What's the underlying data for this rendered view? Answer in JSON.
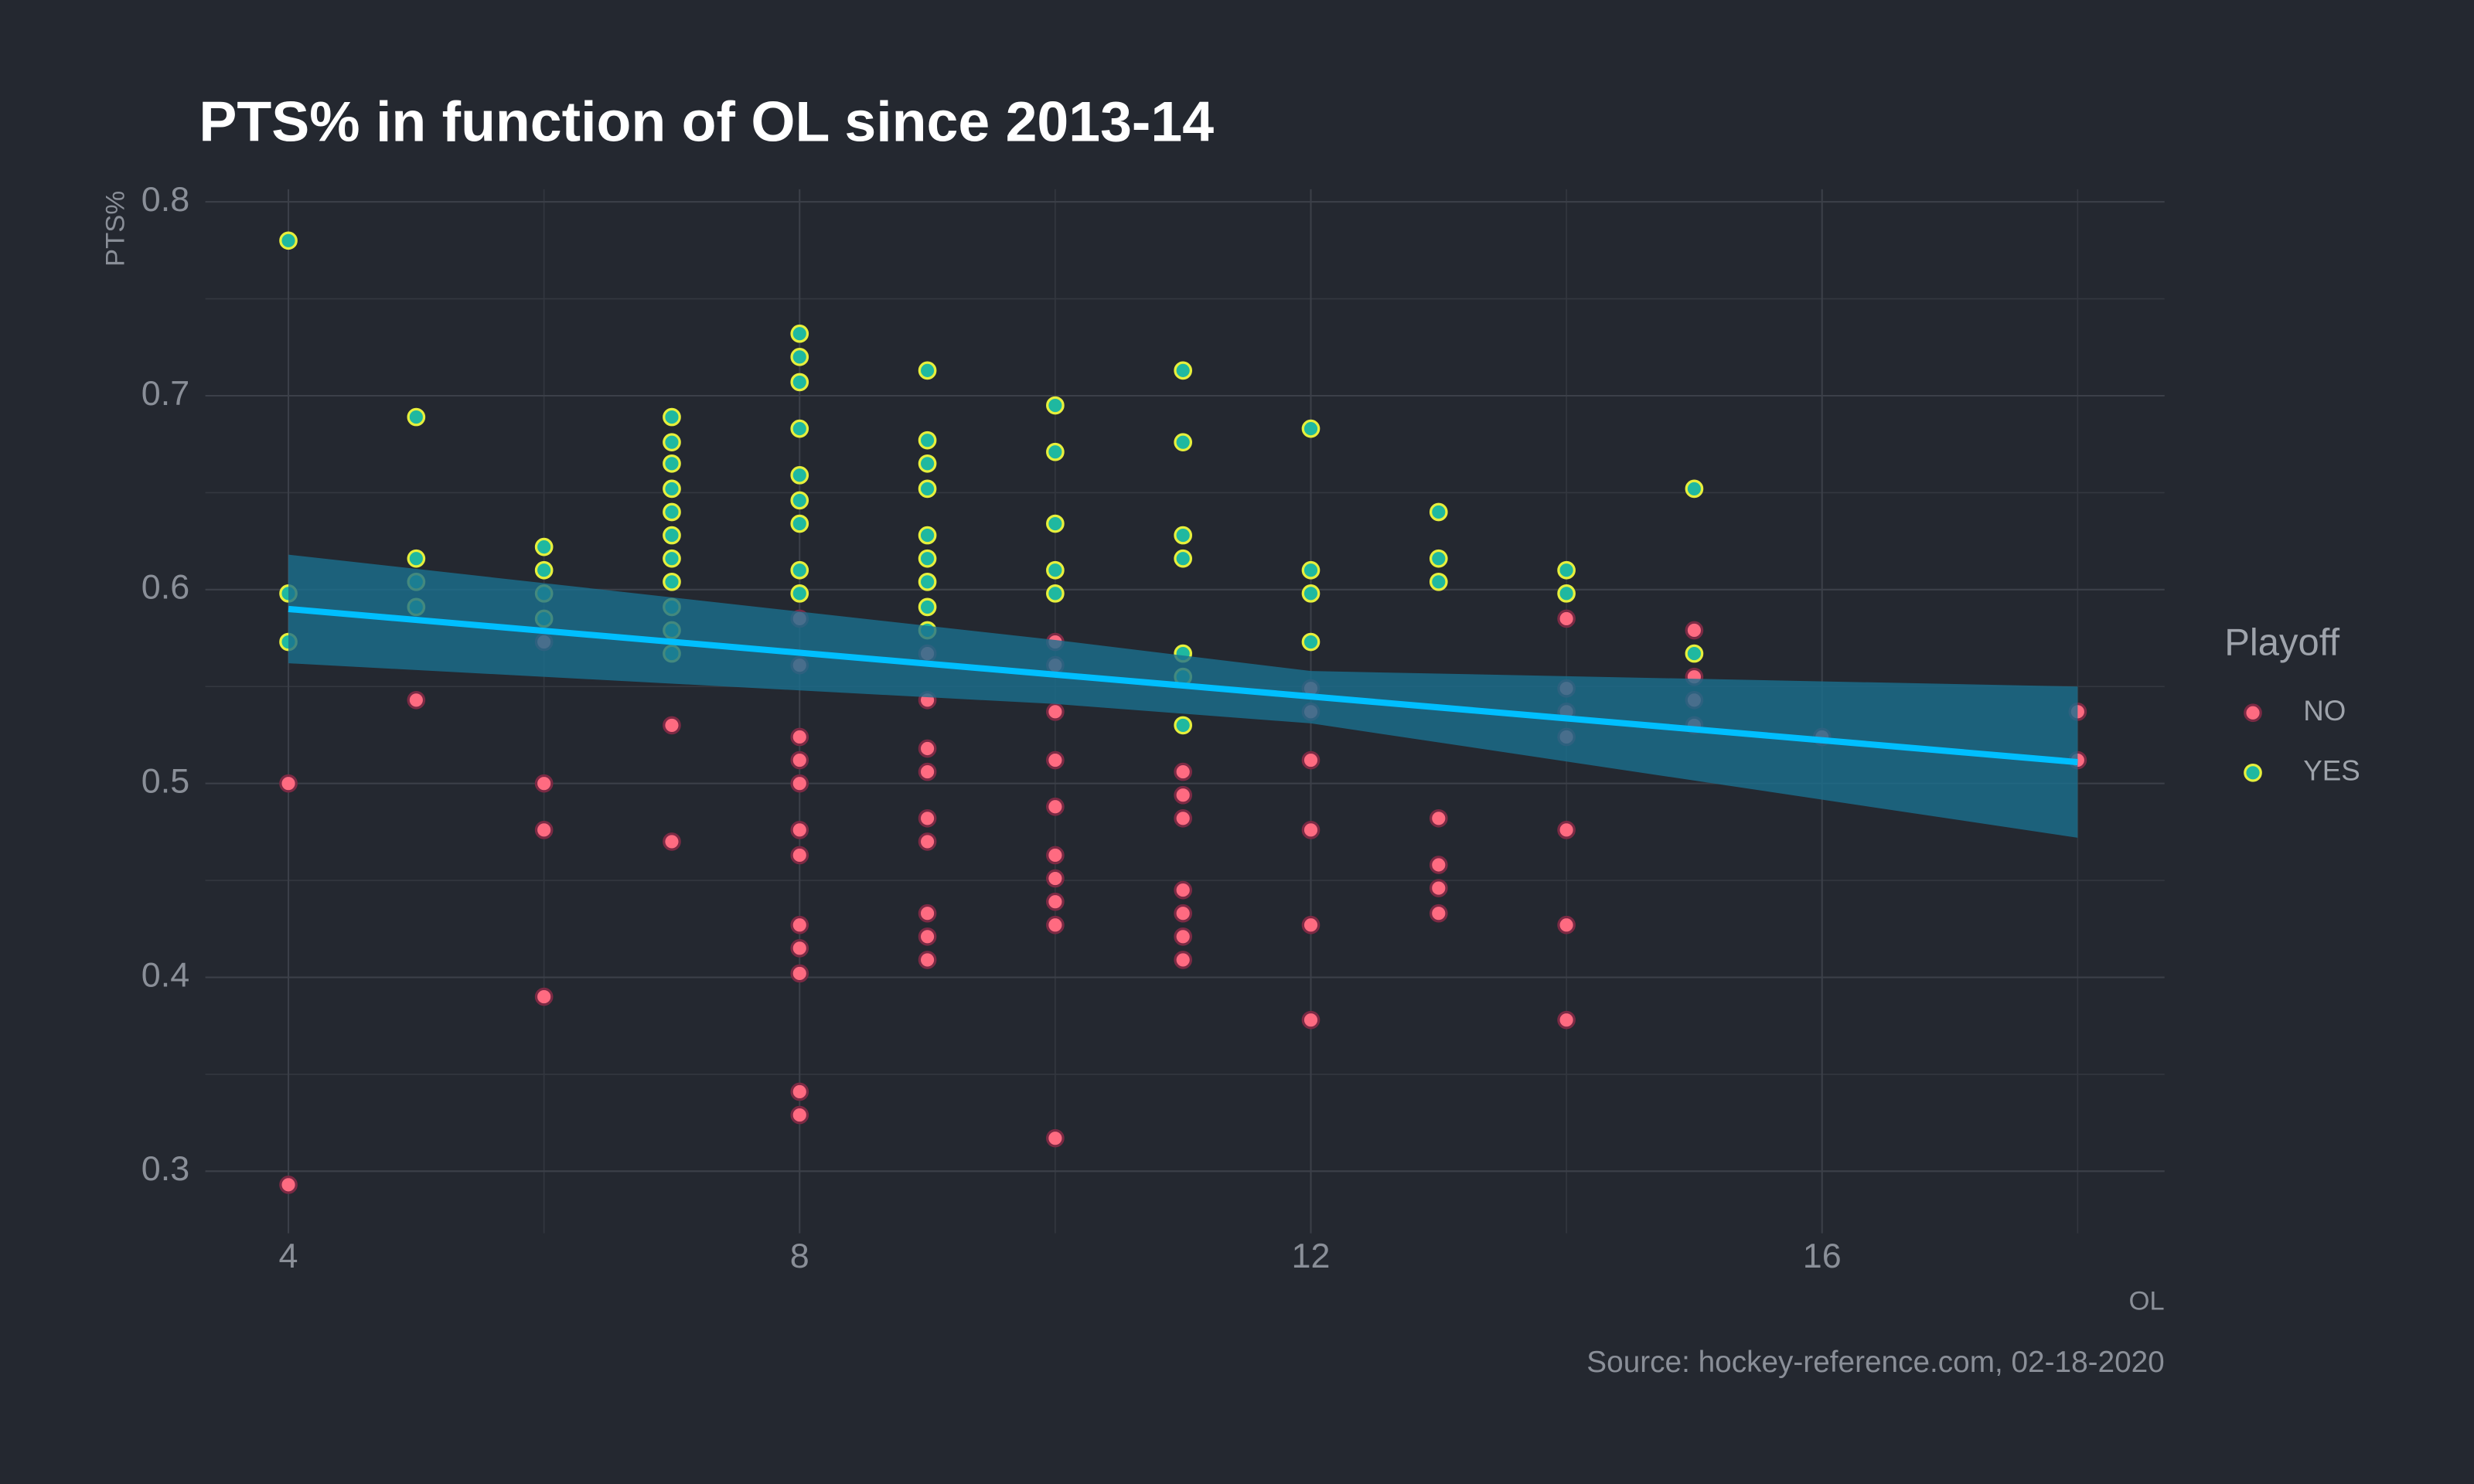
{
  "chart_data": {
    "type": "scatter",
    "title": "PTS% in function of OL since 2013-14",
    "x_label": "OL",
    "y_label": "PTS%",
    "source": "Source: hockey-reference.com, 02-18-2020",
    "legend_title": "Playoff",
    "xlim": [
      3.35,
      18.68
    ],
    "ylim": [
      0.268,
      0.8065
    ],
    "xticks": [
      4,
      8,
      12,
      16
    ],
    "yticks": [
      0.3,
      0.4,
      0.5,
      0.6,
      0.7,
      0.8
    ],
    "grid": true,
    "series": [
      {
        "name": "NO",
        "color": "#ff6b81",
        "stroke": "#7a2a44",
        "x": [
          4,
          4,
          5,
          6,
          6,
          6,
          6,
          7,
          7,
          8,
          8,
          8,
          8,
          8,
          8,
          8,
          8,
          8,
          8,
          8,
          8,
          9,
          9,
          9,
          9,
          9,
          9,
          9,
          9,
          9,
          10,
          10,
          10,
          10,
          10,
          10,
          10,
          10,
          10,
          10,
          11,
          11,
          11,
          11,
          11,
          11,
          11,
          12,
          12,
          12,
          12,
          12,
          12,
          13,
          13,
          13,
          13,
          14,
          14,
          14,
          14,
          14,
          14,
          14,
          15,
          15,
          15,
          15,
          16,
          18,
          18
        ],
        "values": [
          0.5,
          0.293,
          0.543,
          0.573,
          0.5,
          0.476,
          0.39,
          0.53,
          0.47,
          0.585,
          0.561,
          0.524,
          0.512,
          0.5,
          0.476,
          0.463,
          0.427,
          0.415,
          0.402,
          0.341,
          0.329,
          0.567,
          0.543,
          0.518,
          0.506,
          0.482,
          0.47,
          0.433,
          0.421,
          0.409,
          0.573,
          0.561,
          0.537,
          0.512,
          0.488,
          0.463,
          0.451,
          0.439,
          0.427,
          0.317,
          0.506,
          0.494,
          0.482,
          0.445,
          0.433,
          0.421,
          0.409,
          0.549,
          0.537,
          0.512,
          0.476,
          0.427,
          0.378,
          0.482,
          0.458,
          0.446,
          0.433,
          0.585,
          0.549,
          0.537,
          0.524,
          0.476,
          0.427,
          0.378,
          0.579,
          0.555,
          0.543,
          0.53,
          0.524,
          0.537,
          0.512
        ]
      },
      {
        "name": "YES",
        "color": "#1fb8a0",
        "stroke": "#e6ef3c",
        "x": [
          4,
          4,
          4,
          5,
          5,
          5,
          5,
          6,
          6,
          6,
          6,
          7,
          7,
          7,
          7,
          7,
          7,
          7,
          7,
          7,
          7,
          7,
          8,
          8,
          8,
          8,
          8,
          8,
          8,
          8,
          8,
          9,
          9,
          9,
          9,
          9,
          9,
          9,
          9,
          9,
          10,
          10,
          10,
          10,
          10,
          11,
          11,
          11,
          11,
          11,
          11,
          11,
          12,
          12,
          12,
          12,
          13,
          13,
          13,
          14,
          14,
          15,
          15
        ],
        "values": [
          0.78,
          0.598,
          0.573,
          0.689,
          0.616,
          0.604,
          0.591,
          0.622,
          0.61,
          0.598,
          0.585,
          0.689,
          0.676,
          0.665,
          0.652,
          0.64,
          0.628,
          0.616,
          0.604,
          0.591,
          0.579,
          0.567,
          0.732,
          0.72,
          0.707,
          0.683,
          0.659,
          0.646,
          0.634,
          0.61,
          0.598,
          0.713,
          0.677,
          0.665,
          0.652,
          0.628,
          0.616,
          0.604,
          0.591,
          0.579,
          0.695,
          0.671,
          0.634,
          0.61,
          0.598,
          0.713,
          0.676,
          0.628,
          0.616,
          0.567,
          0.555,
          0.53,
          0.683,
          0.61,
          0.598,
          0.573,
          0.64,
          0.616,
          0.604,
          0.61,
          0.598,
          0.652,
          0.567
        ]
      }
    ],
    "trend": {
      "color": "#00bfff",
      "x": [
        4,
        18
      ],
      "y": [
        0.59,
        0.511
      ]
    },
    "band": {
      "color": "#1a6f8f",
      "x": [
        4,
        10,
        12,
        18
      ],
      "upper": [
        0.618,
        0.574,
        0.558,
        0.55
      ],
      "lower": [
        0.562,
        0.541,
        0.531,
        0.472
      ]
    }
  }
}
